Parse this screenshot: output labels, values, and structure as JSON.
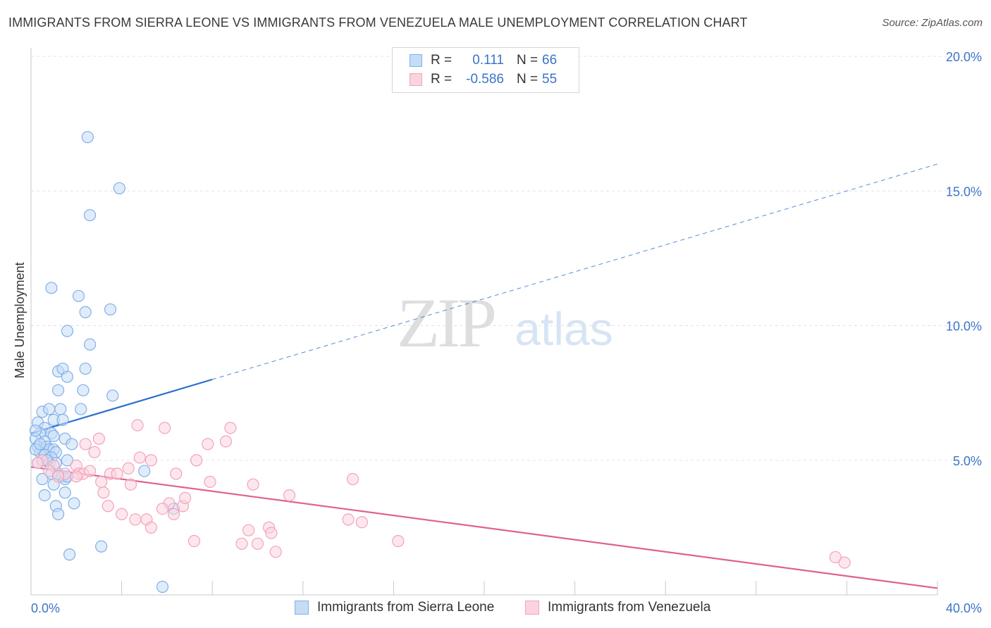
{
  "title": "IMMIGRANTS FROM SIERRA LEONE VS IMMIGRANTS FROM VENEZUELA MALE UNEMPLOYMENT CORRELATION CHART",
  "source": "Source: ZipAtlas.com",
  "watermark": {
    "zip": "ZIP",
    "atlas": "atlas"
  },
  "legend": {
    "rows": [
      {
        "r_label": "R =",
        "r_value": "0.111",
        "n_label": "N =",
        "n_value": "66",
        "color": "#7fb0ea",
        "fill": "#c6dcf6"
      },
      {
        "r_label": "R =",
        "r_value": "-0.586",
        "n_label": "N =",
        "n_value": "55",
        "color": "#f1a3bb",
        "fill": "#fbd3df"
      }
    ]
  },
  "bottom_legend": [
    {
      "label": "Immigrants from Sierra Leone",
      "color": "#7fb0ea",
      "fill": "#c6dcf6"
    },
    {
      "label": "Immigrants from Venezuela",
      "color": "#f1a3bb",
      "fill": "#fbd3df"
    }
  ],
  "chart_data": {
    "type": "scatter",
    "title": "IMMIGRANTS FROM SIERRA LEONE VS IMMIGRANTS FROM VENEZUELA MALE UNEMPLOYMENT CORRELATION CHART",
    "xlabel": "",
    "ylabel": "Male Unemployment",
    "xlim": [
      0,
      40
    ],
    "ylim": [
      0,
      20
    ],
    "x_tick_labels": [
      {
        "value": 0,
        "label": "0.0%"
      },
      {
        "value": 40,
        "label": "40.0%"
      }
    ],
    "y_tick_labels": [
      {
        "value": 5,
        "label": "5.0%"
      },
      {
        "value": 10,
        "label": "10.0%"
      },
      {
        "value": 15,
        "label": "15.0%"
      },
      {
        "value": 20,
        "label": "20.0%"
      }
    ],
    "grid": true,
    "legend_position": "top-center",
    "series": [
      {
        "name": "Immigrants from Sierra Leone",
        "color": "#7fb0ea",
        "fill": "#c6dcf6",
        "line_color": "#2a6fce",
        "trend": {
          "x_start": 0,
          "y_start": 6.0,
          "x_solid_end": 8,
          "y_solid_end": 8.0,
          "x_dash_end": 40,
          "y_dash_end": 16.0
        },
        "points": [
          [
            2.5,
            17.0
          ],
          [
            3.9,
            15.1
          ],
          [
            2.6,
            14.1
          ],
          [
            0.9,
            11.4
          ],
          [
            2.1,
            11.1
          ],
          [
            2.4,
            10.5
          ],
          [
            3.5,
            10.6
          ],
          [
            1.6,
            9.8
          ],
          [
            2.6,
            9.3
          ],
          [
            1.2,
            8.3
          ],
          [
            1.4,
            8.4
          ],
          [
            2.4,
            8.4
          ],
          [
            1.6,
            8.1
          ],
          [
            1.2,
            7.6
          ],
          [
            2.3,
            7.6
          ],
          [
            3.6,
            7.4
          ],
          [
            0.5,
            6.8
          ],
          [
            0.8,
            6.9
          ],
          [
            1.3,
            6.9
          ],
          [
            2.2,
            6.9
          ],
          [
            0.3,
            6.4
          ],
          [
            0.6,
            6.2
          ],
          [
            1.0,
            6.5
          ],
          [
            1.4,
            6.5
          ],
          [
            0.4,
            6.0
          ],
          [
            0.9,
            6.0
          ],
          [
            1.0,
            5.9
          ],
          [
            0.2,
            5.8
          ],
          [
            0.6,
            5.7
          ],
          [
            1.5,
            5.8
          ],
          [
            1.8,
            5.6
          ],
          [
            0.3,
            5.5
          ],
          [
            0.5,
            5.4
          ],
          [
            0.7,
            5.5
          ],
          [
            0.8,
            5.4
          ],
          [
            0.4,
            5.3
          ],
          [
            1.0,
            5.4
          ],
          [
            1.1,
            5.3
          ],
          [
            0.2,
            5.4
          ],
          [
            0.6,
            5.2
          ],
          [
            0.9,
            5.1
          ],
          [
            0.5,
            5.0
          ],
          [
            0.3,
            4.9
          ],
          [
            0.8,
            4.9
          ],
          [
            1.1,
            4.9
          ],
          [
            1.6,
            5.0
          ],
          [
            0.9,
            4.5
          ],
          [
            0.5,
            4.3
          ],
          [
            1.4,
            4.4
          ],
          [
            1.5,
            4.3
          ],
          [
            1.6,
            4.4
          ],
          [
            1.0,
            4.1
          ],
          [
            5.0,
            4.6
          ],
          [
            0.6,
            3.7
          ],
          [
            1.5,
            3.8
          ],
          [
            1.1,
            3.3
          ],
          [
            1.9,
            3.4
          ],
          [
            1.2,
            3.0
          ],
          [
            6.3,
            3.2
          ],
          [
            3.1,
            1.8
          ],
          [
            1.7,
            1.5
          ],
          [
            5.8,
            0.3
          ],
          [
            0.2,
            6.1
          ],
          [
            0.4,
            5.6
          ],
          [
            0.7,
            5.0
          ],
          [
            1.2,
            4.5
          ]
        ]
      },
      {
        "name": "Immigrants from Venezuela",
        "color": "#f1a3bb",
        "fill": "#fbd3df",
        "line_color": "#e0618c",
        "trend": {
          "x_start": 0,
          "y_start": 4.75,
          "x_end": 40,
          "y_end": 0.25
        },
        "points": [
          [
            4.7,
            6.3
          ],
          [
            5.9,
            6.2
          ],
          [
            8.8,
            6.2
          ],
          [
            3.0,
            5.8
          ],
          [
            2.4,
            5.6
          ],
          [
            7.8,
            5.6
          ],
          [
            8.6,
            5.7
          ],
          [
            2.8,
            5.3
          ],
          [
            4.8,
            5.1
          ],
          [
            5.3,
            5.0
          ],
          [
            7.3,
            5.0
          ],
          [
            0.5,
            5.0
          ],
          [
            1.0,
            4.8
          ],
          [
            2.0,
            4.8
          ],
          [
            4.3,
            4.7
          ],
          [
            3.5,
            4.5
          ],
          [
            3.8,
            4.5
          ],
          [
            6.4,
            4.5
          ],
          [
            2.1,
            4.5
          ],
          [
            2.3,
            4.5
          ],
          [
            2.0,
            4.4
          ],
          [
            0.8,
            4.6
          ],
          [
            1.5,
            4.5
          ],
          [
            14.2,
            4.3
          ],
          [
            7.9,
            4.2
          ],
          [
            9.8,
            4.1
          ],
          [
            4.4,
            4.1
          ],
          [
            3.2,
            3.8
          ],
          [
            11.4,
            3.7
          ],
          [
            6.1,
            3.4
          ],
          [
            3.4,
            3.3
          ],
          [
            5.8,
            3.2
          ],
          [
            6.7,
            3.3
          ],
          [
            6.3,
            3.0
          ],
          [
            4.0,
            3.0
          ],
          [
            4.6,
            2.8
          ],
          [
            5.1,
            2.8
          ],
          [
            14.0,
            2.8
          ],
          [
            14.6,
            2.7
          ],
          [
            5.3,
            2.5
          ],
          [
            9.6,
            2.4
          ],
          [
            10.5,
            2.5
          ],
          [
            10.6,
            2.3
          ],
          [
            7.2,
            2.0
          ],
          [
            9.3,
            1.9
          ],
          [
            10.0,
            1.9
          ],
          [
            16.2,
            2.0
          ],
          [
            10.8,
            1.6
          ],
          [
            35.5,
            1.4
          ],
          [
            35.9,
            1.2
          ],
          [
            0.3,
            4.9
          ],
          [
            1.2,
            4.4
          ],
          [
            2.6,
            4.6
          ],
          [
            3.1,
            4.2
          ],
          [
            6.8,
            3.6
          ]
        ]
      }
    ]
  }
}
